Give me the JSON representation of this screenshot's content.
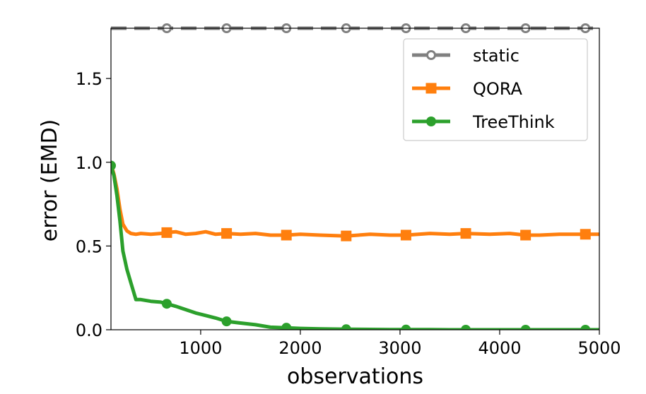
{
  "chart_data": {
    "type": "line",
    "xlabel": "observations",
    "ylabel": "error (EMD)",
    "xlim": [
      100,
      5000
    ],
    "ylim": [
      0.0,
      1.8
    ],
    "xticks": [
      1000,
      2000,
      3000,
      4000,
      5000
    ],
    "xtick_labels": [
      "1000",
      "2000",
      "3000",
      "4000",
      "5000"
    ],
    "yticks": [
      0.0,
      0.5,
      1.0,
      1.5
    ],
    "ytick_labels": [
      "0.0",
      "0.5",
      "1.0",
      "1.5"
    ],
    "grid": false,
    "legend_position": "top-right",
    "series": [
      {
        "name": "static",
        "color": "#808080",
        "line_style": "dashed",
        "marker": "open-circle",
        "x": [
          100,
          5000
        ],
        "y": [
          1.8,
          1.8
        ],
        "marker_x": [
          660,
          1260,
          1860,
          2460,
          3060,
          3660,
          4260,
          4860
        ]
      },
      {
        "name": "QORA",
        "color": "#ff7f0e",
        "line_style": "solid",
        "marker": "square",
        "x": [
          100,
          130,
          160,
          190,
          220,
          260,
          300,
          350,
          400,
          500,
          600,
          660,
          750,
          850,
          950,
          1050,
          1150,
          1260,
          1400,
          1550,
          1700,
          1860,
          2000,
          2200,
          2460,
          2700,
          2900,
          3060,
          3300,
          3500,
          3660,
          3900,
          4100,
          4260,
          4400,
          4600,
          4860,
          5000
        ],
        "y": [
          0.99,
          0.93,
          0.84,
          0.72,
          0.63,
          0.59,
          0.575,
          0.57,
          0.575,
          0.57,
          0.575,
          0.58,
          0.585,
          0.57,
          0.575,
          0.585,
          0.57,
          0.575,
          0.57,
          0.575,
          0.565,
          0.565,
          0.57,
          0.565,
          0.56,
          0.57,
          0.565,
          0.565,
          0.575,
          0.57,
          0.575,
          0.57,
          0.575,
          0.565,
          0.565,
          0.57,
          0.57,
          0.57
        ],
        "marker_x": [
          660,
          1260,
          1860,
          2460,
          3060,
          3660,
          4260,
          4860
        ]
      },
      {
        "name": "TreeThink",
        "color": "#2ca02c",
        "line_style": "solid",
        "marker": "circle",
        "x": [
          100,
          130,
          160,
          190,
          220,
          260,
          300,
          350,
          400,
          500,
          600,
          660,
          750,
          850,
          950,
          1050,
          1150,
          1260,
          1400,
          1550,
          1700,
          1860,
          2000,
          2200,
          2460,
          2700,
          2900,
          3060,
          3300,
          3500,
          3660,
          3900,
          4100,
          4260,
          4400,
          4600,
          4860,
          5000
        ],
        "y": [
          0.98,
          0.92,
          0.8,
          0.65,
          0.47,
          0.36,
          0.28,
          0.18,
          0.18,
          0.17,
          0.165,
          0.155,
          0.14,
          0.12,
          0.1,
          0.085,
          0.07,
          0.05,
          0.04,
          0.03,
          0.015,
          0.012,
          0.008,
          0.005,
          0.003,
          0.002,
          0.001,
          0.001,
          0.001,
          0.0,
          0.0,
          0.0,
          0.0,
          0.0,
          0.0,
          0.0,
          0.0,
          0.0
        ],
        "marker_x": [
          100,
          660,
          1260,
          1860,
          2460,
          3060,
          3660,
          4260,
          4860
        ]
      }
    ]
  }
}
